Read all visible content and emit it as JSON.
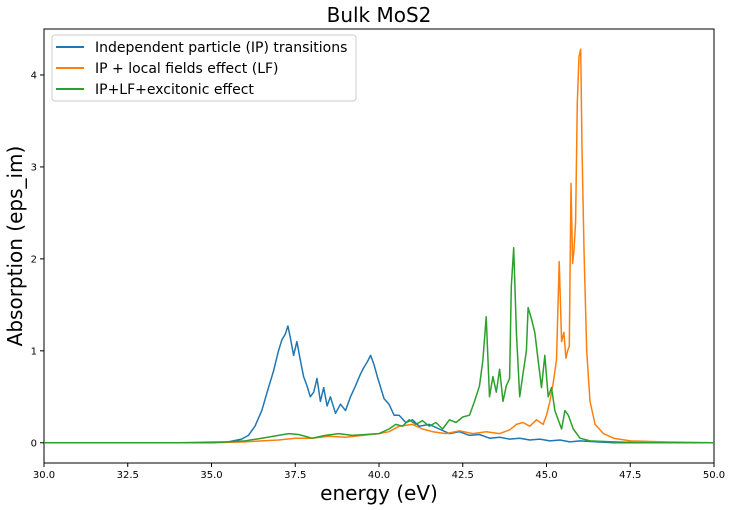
{
  "chart_data": {
    "type": "line",
    "title": "Bulk MoS2",
    "xlabel": "energy (eV)",
    "ylabel": "Absorption (eps_im)",
    "xlim": [
      30.0,
      50.0
    ],
    "ylim": [
      -0.22,
      4.5
    ],
    "xticks": [
      "30.0",
      "32.5",
      "35.0",
      "37.5",
      "40.0",
      "42.5",
      "45.0",
      "47.5",
      "50.0"
    ],
    "xtick_values": [
      30.0,
      32.5,
      35.0,
      37.5,
      40.0,
      42.5,
      45.0,
      47.5,
      50.0
    ],
    "yticks": [
      "0",
      "1",
      "2",
      "3",
      "4"
    ],
    "ytick_values": [
      0,
      1,
      2,
      3,
      4
    ],
    "grid": false,
    "legend_position": "top-left",
    "series": [
      {
        "name": "Independent particle (IP) transitions",
        "color": "#1f77b4",
        "x": [
          30.0,
          34.0,
          35.5,
          35.9,
          36.1,
          36.3,
          36.5,
          36.7,
          36.85,
          37.0,
          37.1,
          37.2,
          37.28,
          37.35,
          37.45,
          37.55,
          37.65,
          37.75,
          37.85,
          37.95,
          38.05,
          38.15,
          38.25,
          38.35,
          38.45,
          38.55,
          38.7,
          38.85,
          39.0,
          39.15,
          39.3,
          39.45,
          39.55,
          39.65,
          39.75,
          39.85,
          39.95,
          40.05,
          40.15,
          40.3,
          40.45,
          40.6,
          40.8,
          41.0,
          41.2,
          41.5,
          41.8,
          42.1,
          42.4,
          42.7,
          43.0,
          43.3,
          43.6,
          43.9,
          44.2,
          44.5,
          44.8,
          45.1,
          45.4,
          45.7,
          46.0,
          46.5,
          47.0,
          48.0,
          50.0
        ],
        "y": [
          0.0,
          0.0,
          0.01,
          0.04,
          0.08,
          0.18,
          0.35,
          0.6,
          0.78,
          1.0,
          1.12,
          1.18,
          1.27,
          1.15,
          0.95,
          1.1,
          0.9,
          0.72,
          0.62,
          0.5,
          0.55,
          0.7,
          0.45,
          0.6,
          0.4,
          0.5,
          0.32,
          0.42,
          0.35,
          0.5,
          0.62,
          0.75,
          0.82,
          0.88,
          0.95,
          0.85,
          0.72,
          0.6,
          0.48,
          0.42,
          0.3,
          0.3,
          0.22,
          0.25,
          0.18,
          0.2,
          0.15,
          0.1,
          0.12,
          0.08,
          0.09,
          0.05,
          0.06,
          0.04,
          0.05,
          0.03,
          0.04,
          0.02,
          0.03,
          0.01,
          0.02,
          0.01,
          0.0,
          0.0,
          0.0
        ]
      },
      {
        "name": "IP + local fields effect (LF)",
        "color": "#ff7f0e",
        "x": [
          30.0,
          35.0,
          36.0,
          36.5,
          37.0,
          37.5,
          38.0,
          38.5,
          39.0,
          39.5,
          40.0,
          40.3,
          40.6,
          41.0,
          41.3,
          41.6,
          42.0,
          42.4,
          42.8,
          43.2,
          43.6,
          43.9,
          44.1,
          44.3,
          44.5,
          44.7,
          44.9,
          45.0,
          45.1,
          45.2,
          45.3,
          45.38,
          45.45,
          45.52,
          45.58,
          45.63,
          45.68,
          45.73,
          45.78,
          45.82,
          45.87,
          45.92,
          45.97,
          46.02,
          46.06,
          46.12,
          46.2,
          46.3,
          46.45,
          46.7,
          47.0,
          47.5,
          48.5,
          50.0
        ],
        "y": [
          0.0,
          0.0,
          0.01,
          0.02,
          0.03,
          0.05,
          0.05,
          0.07,
          0.06,
          0.08,
          0.1,
          0.12,
          0.18,
          0.2,
          0.15,
          0.12,
          0.1,
          0.13,
          0.1,
          0.12,
          0.1,
          0.14,
          0.2,
          0.22,
          0.18,
          0.25,
          0.2,
          0.3,
          0.45,
          0.65,
          0.9,
          1.97,
          1.1,
          1.2,
          0.92,
          1.0,
          1.05,
          2.82,
          1.95,
          2.1,
          2.4,
          3.7,
          4.2,
          4.28,
          3.2,
          2.1,
          1.0,
          0.45,
          0.2,
          0.1,
          0.05,
          0.02,
          0.01,
          0.0
        ]
      },
      {
        "name": "IP+LF+excitonic effect",
        "color": "#2ca02c",
        "x": [
          30.0,
          35.0,
          36.0,
          36.5,
          37.0,
          37.3,
          37.6,
          38.0,
          38.4,
          38.8,
          39.2,
          39.6,
          40.0,
          40.3,
          40.5,
          40.7,
          40.9,
          41.1,
          41.3,
          41.5,
          41.7,
          41.9,
          42.1,
          42.3,
          42.5,
          42.7,
          42.85,
          43.0,
          43.1,
          43.2,
          43.3,
          43.4,
          43.5,
          43.6,
          43.7,
          43.8,
          43.9,
          43.95,
          44.02,
          44.1,
          44.2,
          44.3,
          44.4,
          44.45,
          44.55,
          44.65,
          44.75,
          44.85,
          44.95,
          45.05,
          45.15,
          45.25,
          45.35,
          45.45,
          45.55,
          45.65,
          45.8,
          46.0,
          46.3,
          47.0,
          48.0,
          50.0
        ],
        "y": [
          0.0,
          0.0,
          0.02,
          0.05,
          0.08,
          0.1,
          0.09,
          0.05,
          0.08,
          0.1,
          0.08,
          0.09,
          0.1,
          0.15,
          0.2,
          0.18,
          0.25,
          0.2,
          0.24,
          0.18,
          0.22,
          0.15,
          0.25,
          0.22,
          0.28,
          0.3,
          0.45,
          0.62,
          0.9,
          1.37,
          0.5,
          0.72,
          0.55,
          0.8,
          0.45,
          0.62,
          0.7,
          1.7,
          2.12,
          1.2,
          0.5,
          0.75,
          1.0,
          1.47,
          1.35,
          1.2,
          0.9,
          0.6,
          0.95,
          0.5,
          0.6,
          0.35,
          0.25,
          0.15,
          0.35,
          0.3,
          0.15,
          0.05,
          0.02,
          0.01,
          0.0,
          0.0
        ]
      }
    ]
  }
}
